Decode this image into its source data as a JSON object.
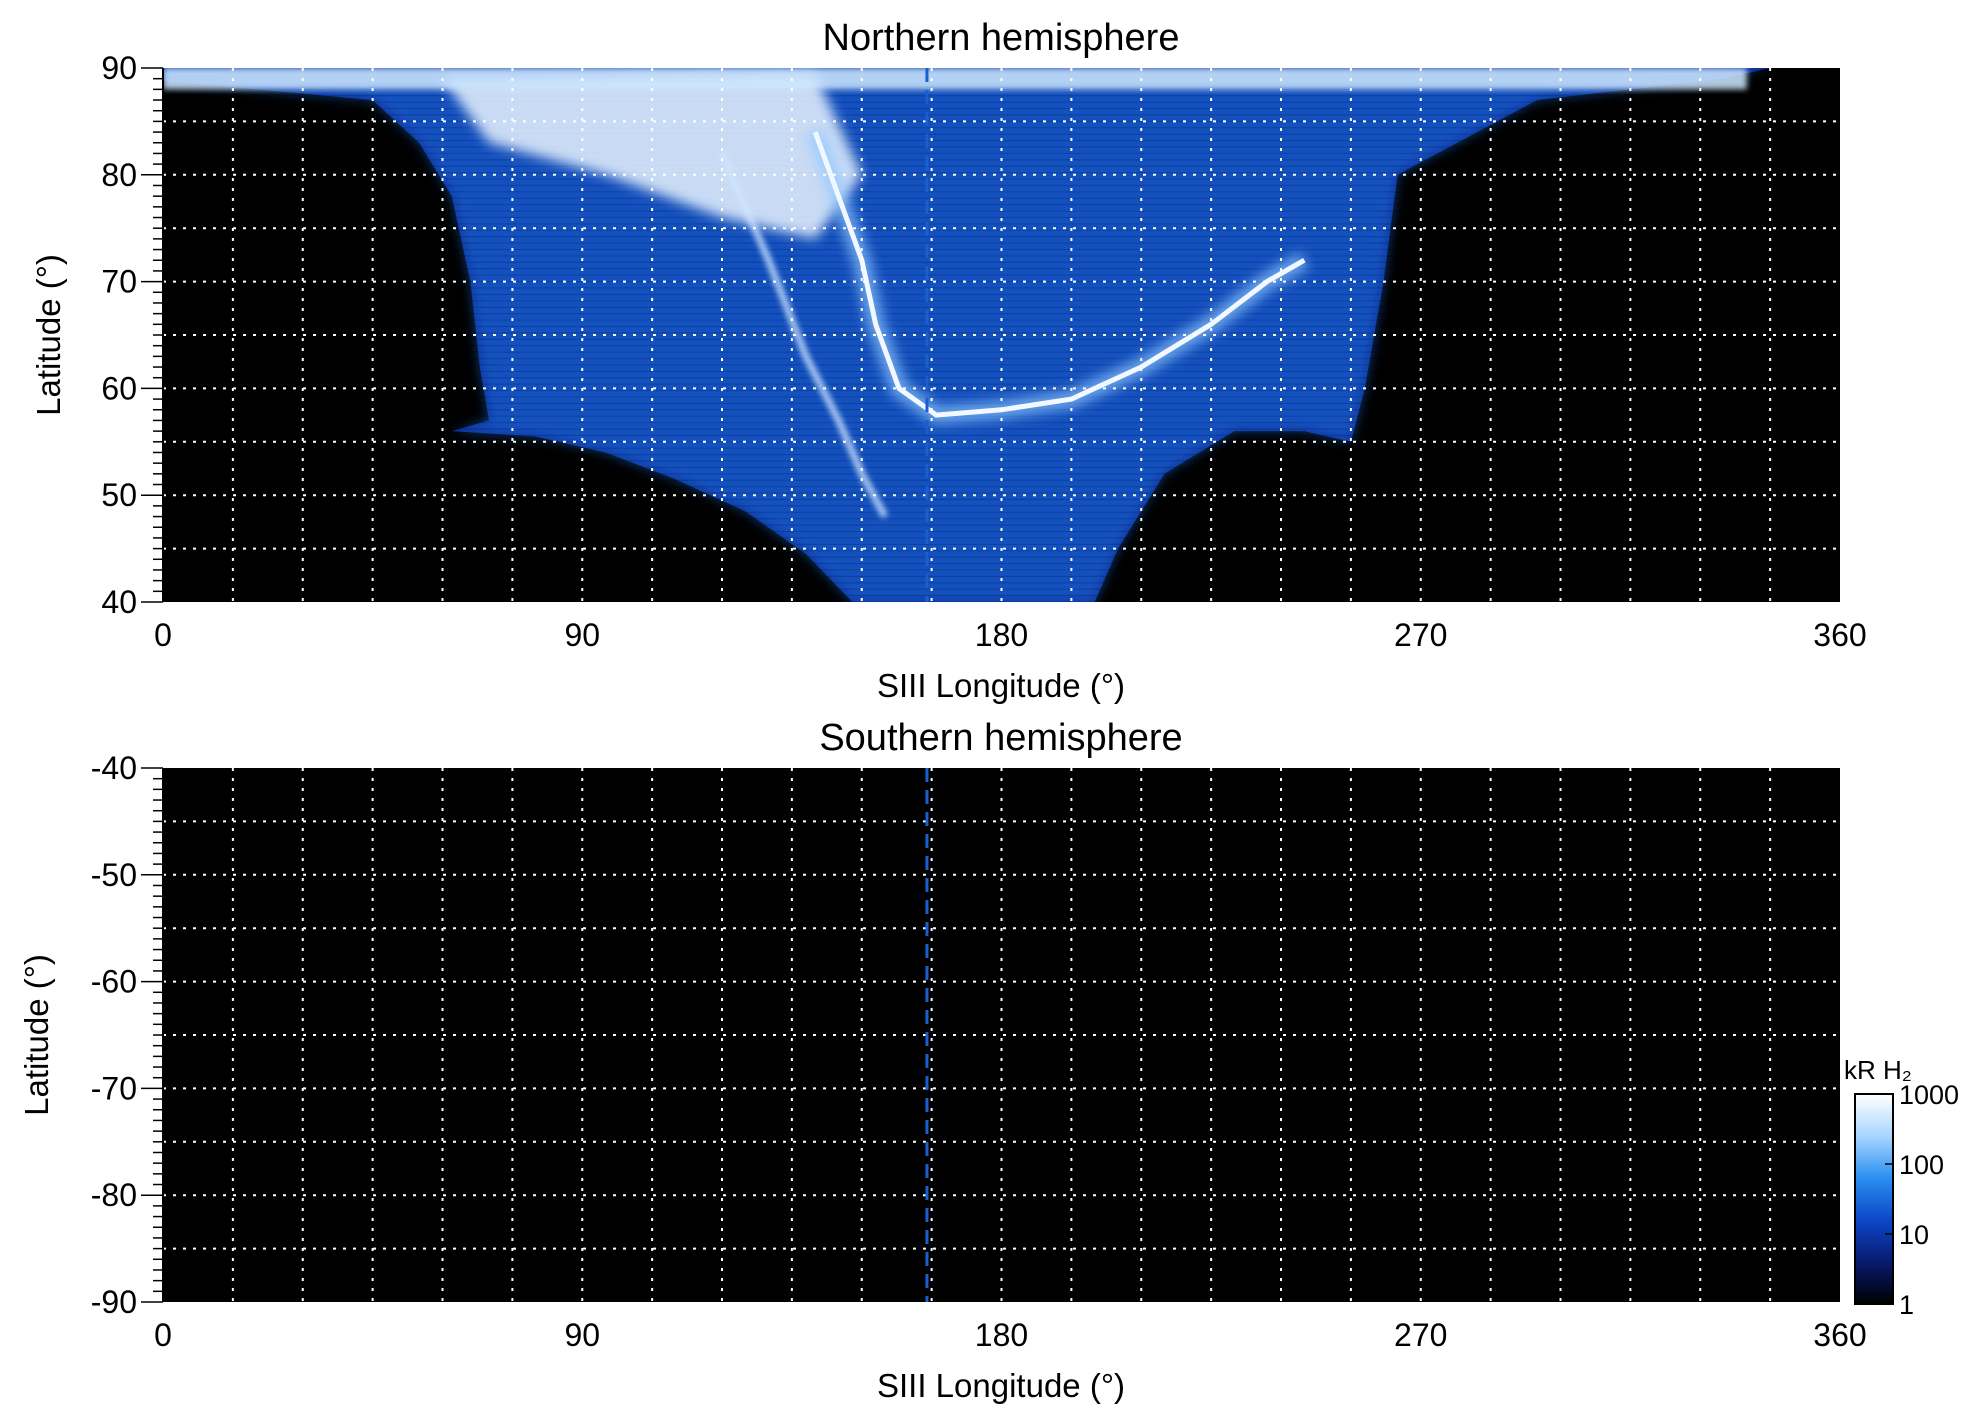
{
  "chart_data": [
    {
      "type": "heatmap",
      "title": "Northern hemisphere",
      "xlabel": "SIII Longitude (°)",
      "ylabel": "Latitude (°)",
      "xlim": [
        0,
        360
      ],
      "ylim": [
        40,
        90
      ],
      "xticks": [
        0,
        90,
        180,
        270,
        360
      ],
      "yticks": [
        40,
        50,
        60,
        70,
        80,
        90
      ],
      "grid": true,
      "grid_x_step": 15,
      "grid_y_step": 5,
      "background": "#000000",
      "reference_longitude": 164,
      "reference_line_color": "#1a5fd0",
      "emission": {
        "description_features": "upper coverage edge and bright main oval",
        "coverage_lower_edge": [
          [
            62,
            56
          ],
          [
            80,
            55.5
          ],
          [
            95,
            54
          ],
          [
            110,
            51.5
          ],
          [
            125,
            48.5
          ],
          [
            138,
            44.5
          ],
          [
            148,
            40
          ]
        ],
        "coverage_right_edge": [
          [
            200,
            40
          ],
          [
            205,
            45
          ],
          [
            215,
            52
          ],
          [
            230,
            56
          ],
          [
            245,
            56
          ],
          [
            255,
            55
          ],
          [
            258,
            60
          ],
          [
            262,
            70
          ],
          [
            265,
            80
          ],
          [
            295,
            87
          ],
          [
            335,
            89
          ]
        ],
        "coverage_left_edge": [
          [
            0,
            88.8
          ],
          [
            45,
            87
          ],
          [
            55,
            83
          ],
          [
            62,
            78
          ],
          [
            66,
            70
          ],
          [
            68,
            62
          ],
          [
            70,
            57
          ]
        ],
        "main_oval": [
          [
            140,
            84
          ],
          [
            145,
            78
          ],
          [
            150,
            72
          ],
          [
            153,
            66
          ],
          [
            158,
            60
          ],
          [
            166,
            57.5
          ],
          [
            180,
            58
          ],
          [
            195,
            59
          ],
          [
            210,
            62
          ],
          [
            225,
            66
          ],
          [
            237,
            70
          ],
          [
            245,
            72
          ]
        ],
        "secondary_arc": [
          [
            120,
            82
          ],
          [
            130,
            72
          ],
          [
            138,
            63
          ],
          [
            145,
            57
          ],
          [
            150,
            52
          ],
          [
            155,
            48
          ]
        ]
      }
    },
    {
      "type": "heatmap",
      "title": "Southern hemisphere",
      "xlabel": "SIII Longitude (°)",
      "ylabel": "Latitude (°)",
      "xlim": [
        0,
        360
      ],
      "ylim": [
        -90,
        -40
      ],
      "xticks": [
        0,
        90,
        180,
        270,
        360
      ],
      "yticks": [
        -40,
        -50,
        -60,
        -70,
        -80,
        -90
      ],
      "grid": true,
      "grid_x_step": 15,
      "grid_y_step": 5,
      "background": "#000000",
      "reference_longitude": 164,
      "reference_line_color": "#1a5fd0"
    }
  ],
  "colorbar": {
    "title": "kR H₂",
    "scale": "log",
    "range": [
      1,
      1000
    ],
    "ticks": [
      "1",
      "10",
      "100",
      "1000"
    ],
    "colors": [
      "#000000",
      "#081a6e",
      "#0d47c9",
      "#2a8ff0",
      "#a9d6ff",
      "#ffffff"
    ]
  }
}
